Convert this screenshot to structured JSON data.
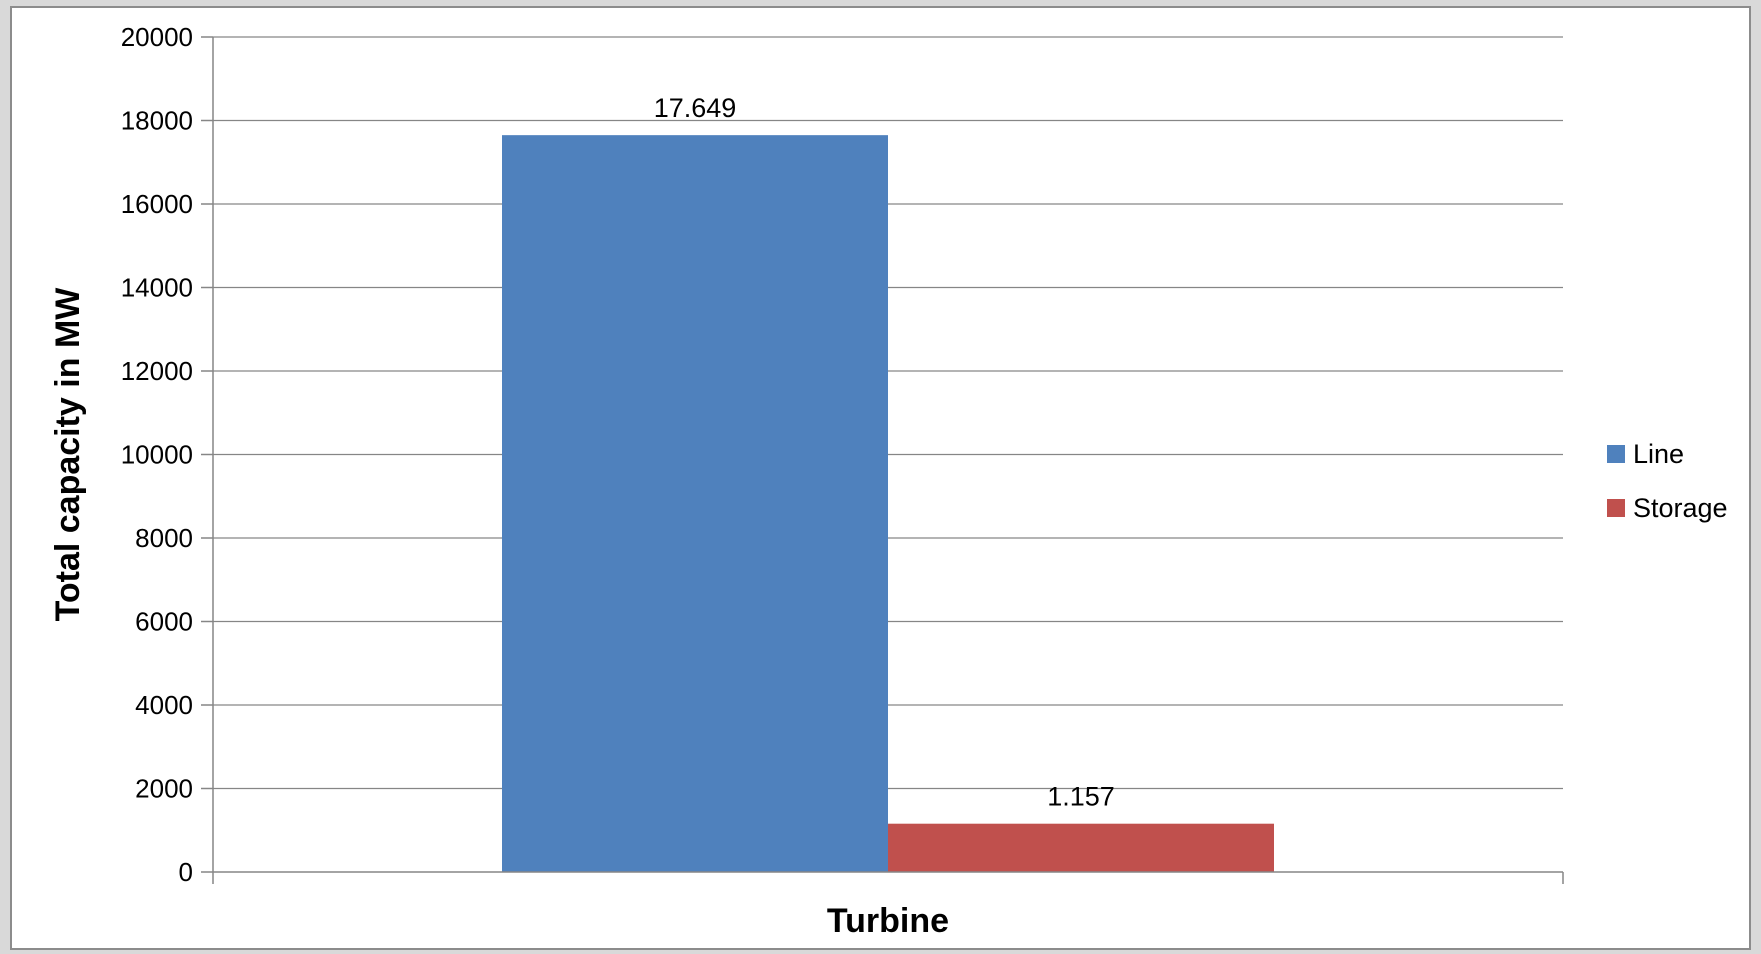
{
  "chart_data": {
    "type": "bar",
    "categories": [
      "Turbine"
    ],
    "series": [
      {
        "name": "Line",
        "values": [
          17649
        ],
        "data_label": "17.649",
        "color": "#4f81bd"
      },
      {
        "name": "Storage",
        "values": [
          1157
        ],
        "data_label": "1.157",
        "color": "#c0504d"
      }
    ],
    "xlabel": "Turbine",
    "ylabel": "Total capacity in MW",
    "ylim": [
      0,
      20000
    ],
    "yticks": [
      "0",
      "2000",
      "4000",
      "6000",
      "8000",
      "10000",
      "12000",
      "14000",
      "16000",
      "18000",
      "20000"
    ],
    "grid": true,
    "legend_position": "right"
  }
}
